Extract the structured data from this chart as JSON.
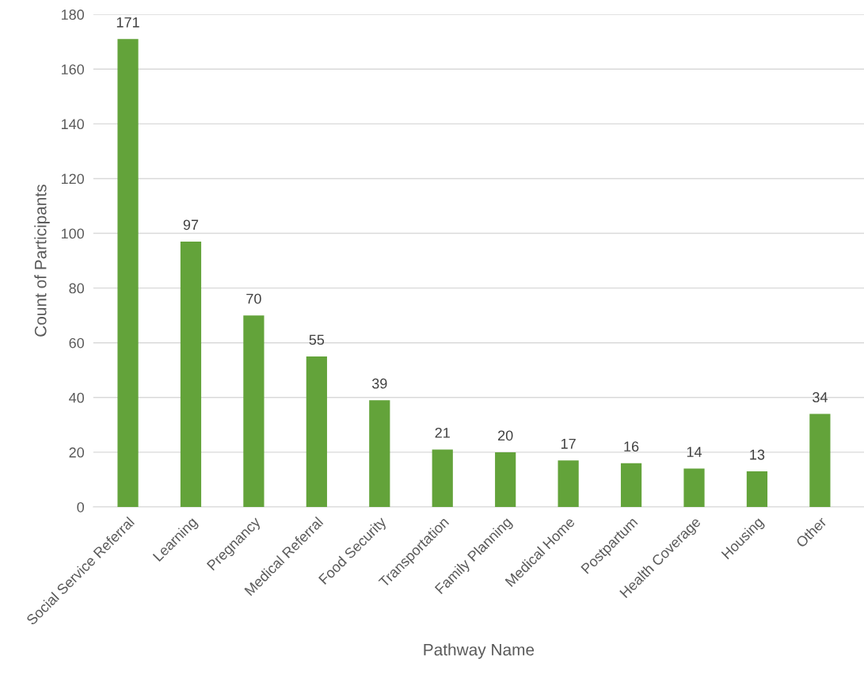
{
  "chart_data": {
    "type": "bar",
    "xlabel": "Pathway Name",
    "ylabel": "Count of Participants",
    "categories": [
      "Social Service Referral",
      "Learning",
      "Pregnancy",
      "Medical Referral",
      "Food Security",
      "Transportation",
      "Family Planning",
      "Medical Home",
      "Postpartum",
      "Health Coverage",
      "Housing",
      "Other"
    ],
    "values": [
      171,
      97,
      70,
      55,
      39,
      21,
      20,
      17,
      16,
      14,
      13,
      34
    ],
    "color": "#63a33a",
    "ylim": [
      0,
      180
    ],
    "yticks": [
      0,
      20,
      40,
      60,
      80,
      100,
      120,
      140,
      160,
      180
    ],
    "grid": "y",
    "data_labels": true
  }
}
